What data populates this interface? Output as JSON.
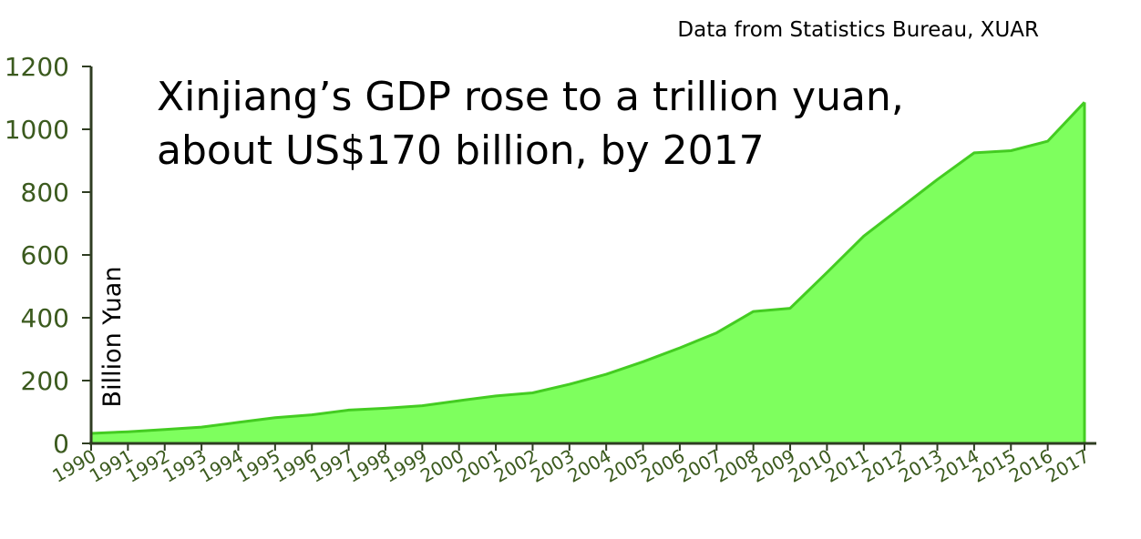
{
  "source_note": "Data from Statistics Bureau, XUAR",
  "chart_data": {
    "type": "area",
    "title": "Xinjiang’s GDP rose to a trillion yuan, about US$170 billion, by 2017",
    "title_lines": [
      "Xinjiang’s GDP rose to a trillion yuan,",
      "about US$170 billion, by 2017"
    ],
    "xlabel": "",
    "ylabel": "Billion Yuan",
    "ylim": [
      0,
      1200
    ],
    "yticks": [
      0,
      200,
      400,
      600,
      800,
      1000,
      1200
    ],
    "grid": false,
    "legend": "none",
    "colors": {
      "area_fill": "#77ff55",
      "area_edge": "#44cc22",
      "axis": "#2f3d22",
      "tick_label": "#3b5a1e",
      "text": "#000000"
    },
    "x": [
      "1990",
      "1991",
      "1992",
      "1993",
      "1994",
      "1995",
      "1996",
      "1997",
      "1998",
      "1999",
      "2000",
      "2001",
      "2002",
      "2003",
      "2004",
      "2005",
      "2006",
      "2007",
      "2008",
      "2009",
      "2010",
      "2011",
      "2012",
      "2013",
      "2014",
      "2015",
      "2016",
      "2017"
    ],
    "series": [
      {
        "values": [
          32,
          37,
          44,
          52,
          67,
          82,
          91,
          106,
          112,
          120,
          136,
          151,
          161,
          188,
          220,
          260,
          304,
          352,
          420,
          430,
          544,
          660,
          750,
          840,
          925,
          932,
          962,
          1086
        ]
      }
    ]
  }
}
